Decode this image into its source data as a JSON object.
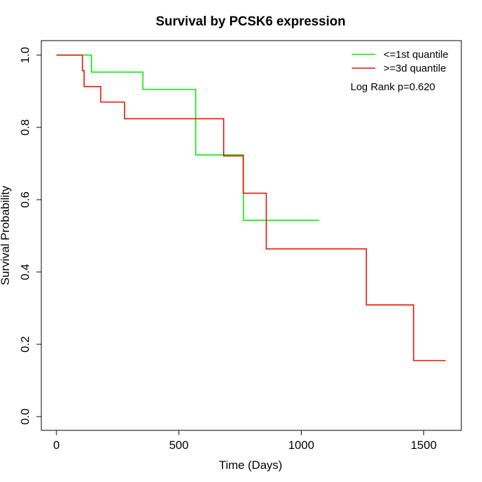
{
  "chart_data": {
    "type": "line",
    "step": true,
    "title": "Survival by PCSK6 expression",
    "xlabel": "Time (Days)",
    "ylabel": "Survival Probability",
    "xlim": [
      0,
      1590
    ],
    "ylim": [
      0,
      1
    ],
    "xticks": [
      0,
      500,
      1000,
      1500
    ],
    "xtick_labels": [
      "0",
      "500",
      "1000",
      "1500"
    ],
    "yticks": [
      0,
      0.2,
      0.4,
      0.6,
      0.8,
      1.0
    ],
    "ytick_labels": [
      "0.0",
      "0.2",
      "0.4",
      "0.6",
      "0.8",
      "1.0"
    ],
    "grid": false,
    "legend_position": "top-right",
    "series": [
      {
        "name": "<=1st quantile",
        "color": "#00ee00",
        "x": [
          0,
          143,
          353,
          569,
          764,
          1073
        ],
        "y": [
          1.0,
          0.953,
          0.905,
          0.724,
          0.543,
          0.543
        ]
      },
      {
        "name": ">=3d quantile",
        "color": "#ee1100",
        "x": [
          0,
          106,
          113,
          181,
          278,
          683,
          763,
          857,
          1266,
          1459,
          1590
        ],
        "y": [
          1.0,
          0.957,
          0.913,
          0.87,
          0.824,
          0.721,
          0.618,
          0.464,
          0.309,
          0.155,
          0.155
        ]
      }
    ],
    "annotation": "Log Rank p=0.620"
  }
}
